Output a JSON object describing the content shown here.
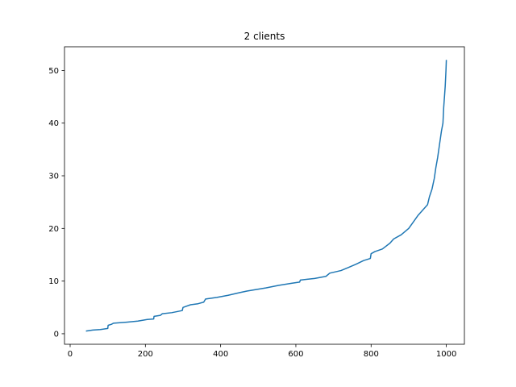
{
  "chart_data": {
    "type": "line",
    "title": "2 clients",
    "xlabel": "",
    "ylabel": "",
    "xlim": [
      -15,
      1048
    ],
    "ylim": [
      -2.0,
      54.5
    ],
    "xticks": [
      0,
      200,
      400,
      600,
      800,
      1000
    ],
    "yticks": [
      0,
      10,
      20,
      30,
      40,
      50
    ],
    "grid": false,
    "series": [
      {
        "color": "#1f77b4",
        "points": [
          [
            42,
            0.5
          ],
          [
            60,
            0.7
          ],
          [
            80,
            0.8
          ],
          [
            100,
            1.0
          ],
          [
            101,
            1.6
          ],
          [
            110,
            1.8
          ],
          [
            115,
            2.0
          ],
          [
            150,
            2.2
          ],
          [
            180,
            2.4
          ],
          [
            205,
            2.7
          ],
          [
            222,
            2.8
          ],
          [
            223,
            3.3
          ],
          [
            240,
            3.5
          ],
          [
            245,
            3.8
          ],
          [
            270,
            4.0
          ],
          [
            298,
            4.4
          ],
          [
            300,
            5.0
          ],
          [
            320,
            5.5
          ],
          [
            340,
            5.7
          ],
          [
            355,
            6.0
          ],
          [
            360,
            6.6
          ],
          [
            390,
            6.9
          ],
          [
            420,
            7.3
          ],
          [
            450,
            7.8
          ],
          [
            470,
            8.1
          ],
          [
            520,
            8.7
          ],
          [
            555,
            9.2
          ],
          [
            590,
            9.6
          ],
          [
            610,
            9.8
          ],
          [
            612,
            10.2
          ],
          [
            650,
            10.5
          ],
          [
            680,
            10.9
          ],
          [
            690,
            11.5
          ],
          [
            720,
            12.0
          ],
          [
            740,
            12.6
          ],
          [
            760,
            13.2
          ],
          [
            780,
            13.9
          ],
          [
            798,
            14.3
          ],
          [
            800,
            15.2
          ],
          [
            810,
            15.6
          ],
          [
            830,
            16.1
          ],
          [
            850,
            17.2
          ],
          [
            860,
            18.0
          ],
          [
            880,
            18.8
          ],
          [
            900,
            20.0
          ],
          [
            910,
            21.0
          ],
          [
            925,
            22.5
          ],
          [
            940,
            23.7
          ],
          [
            950,
            24.5
          ],
          [
            955,
            26.0
          ],
          [
            962,
            27.5
          ],
          [
            968,
            29.5
          ],
          [
            972,
            31.5
          ],
          [
            977,
            33.5
          ],
          [
            982,
            36.0
          ],
          [
            987,
            38.5
          ],
          [
            991,
            40.0
          ],
          [
            993,
            43.0
          ],
          [
            995,
            45.0
          ],
          [
            997,
            47.0
          ],
          [
            999,
            50.0
          ],
          [
            1000,
            52.0
          ]
        ]
      }
    ]
  }
}
